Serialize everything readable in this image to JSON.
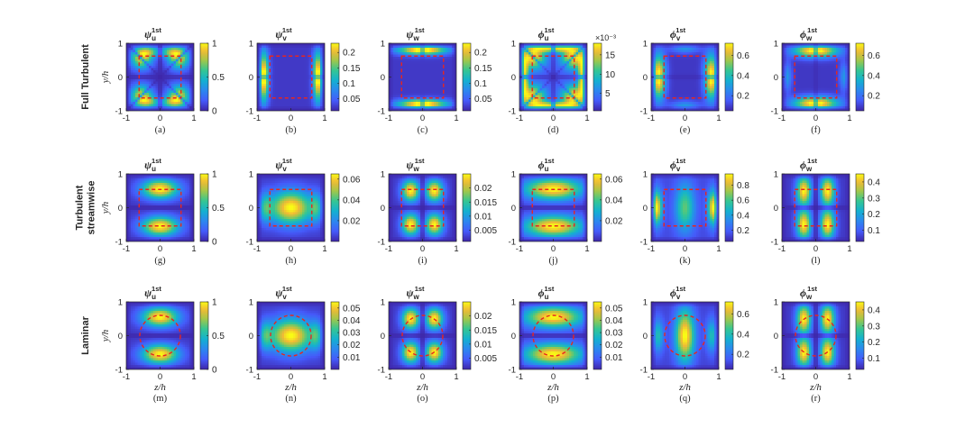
{
  "figure": {
    "row_labels": [
      [
        "Full Turbulent"
      ],
      [
        "Turbulent",
        "streamwise"
      ],
      [
        "Laminar"
      ]
    ],
    "y_axis_label": "y/h",
    "x_axis_label": "z/h",
    "axis_ticks": [
      "-1",
      "0",
      "1"
    ],
    "colors": {
      "colormap": "parula",
      "contour": "#e8261f",
      "text": "#262626"
    }
  },
  "chart_data": [
    {
      "type": "heatmap",
      "id": "a",
      "title_sym": "ψ",
      "title_sub": "u",
      "title_sup": "1st",
      "caption": "(a)",
      "xlim": [
        -1,
        1
      ],
      "ylim": [
        -1,
        1
      ],
      "cbar_ticks": [
        "0",
        "0.5",
        "1"
      ],
      "cbar_range": [
        0,
        1
      ],
      "pattern": "corner-cross",
      "contour": "square"
    },
    {
      "type": "heatmap",
      "id": "b",
      "title_sym": "ψ",
      "title_sub": "v",
      "title_sup": "1st",
      "caption": "(b)",
      "xlim": [
        -1,
        1
      ],
      "ylim": [
        -1,
        1
      ],
      "cbar_ticks": [
        "0.05",
        "0.1",
        "0.15",
        "0.2"
      ],
      "cbar_range": [
        0.01,
        0.23
      ],
      "pattern": "side-bands",
      "contour": "square"
    },
    {
      "type": "heatmap",
      "id": "c",
      "title_sym": "ψ",
      "title_sub": "w",
      "title_sup": "1st",
      "caption": "(c)",
      "xlim": [
        -1,
        1
      ],
      "ylim": [
        -1,
        1
      ],
      "cbar_ticks": [
        "0.05",
        "0.1",
        "0.15",
        "0.2"
      ],
      "cbar_range": [
        0.01,
        0.23
      ],
      "pattern": "top-bands",
      "contour": "square"
    },
    {
      "type": "heatmap",
      "id": "d",
      "title_sym": "ϕ",
      "title_sub": "u",
      "title_sup": "1st",
      "caption": "(d)",
      "xlim": [
        -1,
        1
      ],
      "ylim": [
        -1,
        1
      ],
      "cbar_ticks": [
        "5",
        "10",
        "15"
      ],
      "cbar_exponent": "×10⁻³",
      "cbar_range": [
        0.5,
        18
      ],
      "pattern": "corner-cross-dim",
      "contour": "square"
    },
    {
      "type": "heatmap",
      "id": "e",
      "title_sym": "ϕ",
      "title_sub": "v",
      "title_sup": "1st",
      "caption": "(e)",
      "xlim": [
        -1,
        1
      ],
      "ylim": [
        -1,
        1
      ],
      "cbar_ticks": [
        "0.2",
        "0.4",
        "0.6"
      ],
      "cbar_range": [
        0.05,
        0.72
      ],
      "pattern": "side-bands-strong",
      "contour": "square"
    },
    {
      "type": "heatmap",
      "id": "f",
      "title_sym": "ϕ",
      "title_sub": "w",
      "title_sup": "1st",
      "caption": "(f)",
      "xlim": [
        -1,
        1
      ],
      "ylim": [
        -1,
        1
      ],
      "cbar_ticks": [
        "0.2",
        "0.4",
        "0.6"
      ],
      "cbar_range": [
        0.05,
        0.72
      ],
      "pattern": "top-bands-strong",
      "contour": "square"
    },
    {
      "type": "heatmap",
      "id": "g",
      "title_sym": "ψ",
      "title_sub": "u",
      "title_sup": "1st",
      "caption": "(g)",
      "xlim": [
        -1,
        1
      ],
      "ylim": [
        -1,
        1
      ],
      "cbar_ticks": [
        "0",
        "0.5",
        "1"
      ],
      "cbar_range": [
        0,
        1
      ],
      "pattern": "two-lobes-h",
      "contour": "rect"
    },
    {
      "type": "heatmap",
      "id": "h",
      "title_sym": "ψ",
      "title_sub": "v",
      "title_sup": "1st",
      "caption": "(h)",
      "xlim": [
        -1,
        1
      ],
      "ylim": [
        -1,
        1
      ],
      "cbar_ticks": [
        "0.02",
        "0.04",
        "0.06"
      ],
      "cbar_range": [
        0.0,
        0.065
      ],
      "pattern": "center-wide",
      "contour": "rect"
    },
    {
      "type": "heatmap",
      "id": "i",
      "title_sym": "ψ",
      "title_sub": "w",
      "title_sup": "1st",
      "caption": "(i)",
      "xlim": [
        -1,
        1
      ],
      "ylim": [
        -1,
        1
      ],
      "cbar_ticks": [
        "0.005",
        "0.01",
        "0.015",
        "0.02"
      ],
      "cbar_range": [
        0.001,
        0.025
      ],
      "pattern": "four-lobes",
      "contour": "rect"
    },
    {
      "type": "heatmap",
      "id": "j",
      "title_sym": "ϕ",
      "title_sub": "u",
      "title_sup": "1st",
      "caption": "(j)",
      "xlim": [
        -1,
        1
      ],
      "ylim": [
        -1,
        1
      ],
      "cbar_ticks": [
        "0.02",
        "0.04",
        "0.06"
      ],
      "cbar_range": [
        0.0,
        0.065
      ],
      "pattern": "two-lobes-h-wide",
      "contour": "rect"
    },
    {
      "type": "heatmap",
      "id": "k",
      "title_sym": "ϕ",
      "title_sub": "v",
      "title_sup": "1st",
      "caption": "(k)",
      "xlim": [
        -1,
        1
      ],
      "ylim": [
        -1,
        1
      ],
      "cbar_ticks": [
        "0.2",
        "0.4",
        "0.6",
        "0.8"
      ],
      "cbar_range": [
        0.05,
        0.95
      ],
      "pattern": "side-center",
      "contour": "rect"
    },
    {
      "type": "heatmap",
      "id": "l",
      "title_sym": "ϕ",
      "title_sub": "w",
      "title_sup": "1st",
      "caption": "(l)",
      "xlim": [
        -1,
        1
      ],
      "ylim": [
        -1,
        1
      ],
      "cbar_ticks": [
        "0.1",
        "0.2",
        "0.3",
        "0.4"
      ],
      "cbar_range": [
        0.03,
        0.45
      ],
      "pattern": "four-lobes-v",
      "contour": "rect"
    },
    {
      "type": "heatmap",
      "id": "m",
      "title_sym": "ψ",
      "title_sub": "u",
      "title_sup": "1st",
      "caption": "(m)",
      "xlim": [
        -1,
        1
      ],
      "ylim": [
        -1,
        1
      ],
      "cbar_ticks": [
        "0",
        "0.5",
        "1"
      ],
      "cbar_range": [
        0,
        1
      ],
      "pattern": "two-lobes-h",
      "contour": "circle"
    },
    {
      "type": "heatmap",
      "id": "n",
      "title_sym": "ψ",
      "title_sub": "v",
      "title_sup": "1st",
      "caption": "(n)",
      "xlim": [
        -1,
        1
      ],
      "ylim": [
        -1,
        1
      ],
      "cbar_ticks": [
        "0.01",
        "0.02",
        "0.03",
        "0.04",
        "0.05"
      ],
      "cbar_range": [
        0.0,
        0.055
      ],
      "pattern": "center-wide",
      "contour": "circle"
    },
    {
      "type": "heatmap",
      "id": "o",
      "title_sym": "ψ",
      "title_sub": "w",
      "title_sup": "1st",
      "caption": "(o)",
      "xlim": [
        -1,
        1
      ],
      "ylim": [
        -1,
        1
      ],
      "cbar_ticks": [
        "0.005",
        "0.01",
        "0.015",
        "0.02"
      ],
      "cbar_range": [
        0.001,
        0.025
      ],
      "pattern": "four-lobes",
      "contour": "circle"
    },
    {
      "type": "heatmap",
      "id": "p",
      "title_sym": "ϕ",
      "title_sub": "u",
      "title_sup": "1st",
      "caption": "(p)",
      "xlim": [
        -1,
        1
      ],
      "ylim": [
        -1,
        1
      ],
      "cbar_ticks": [
        "0.01",
        "0.02",
        "0.03",
        "0.04",
        "0.05"
      ],
      "cbar_range": [
        0.0,
        0.055
      ],
      "pattern": "two-lobes-h-wide",
      "contour": "circle"
    },
    {
      "type": "heatmap",
      "id": "q",
      "title_sym": "ϕ",
      "title_sub": "v",
      "title_sup": "1st",
      "caption": "(q)",
      "xlim": [
        -1,
        1
      ],
      "ylim": [
        -1,
        1
      ],
      "cbar_ticks": [
        "0.2",
        "0.4",
        "0.6"
      ],
      "cbar_range": [
        0.05,
        0.72
      ],
      "pattern": "vertical-center",
      "contour": "circle"
    },
    {
      "type": "heatmap",
      "id": "r",
      "title_sym": "ϕ",
      "title_sub": "w",
      "title_sup": "1st",
      "caption": "(r)",
      "xlim": [
        -1,
        1
      ],
      "ylim": [
        -1,
        1
      ],
      "cbar_ticks": [
        "0.1",
        "0.2",
        "0.3",
        "0.4"
      ],
      "cbar_range": [
        0.03,
        0.45
      ],
      "pattern": "four-lobes-v",
      "contour": "circle"
    }
  ]
}
